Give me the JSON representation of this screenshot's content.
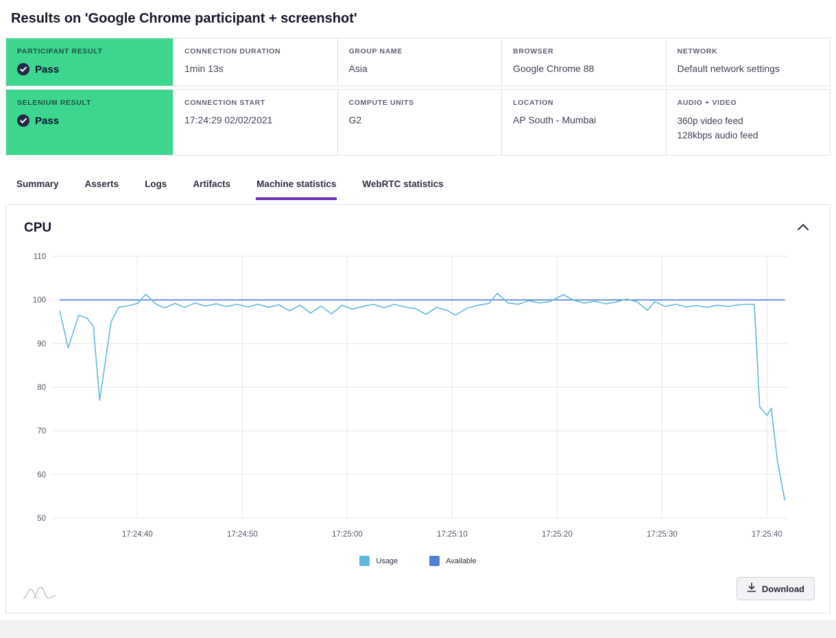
{
  "header": {
    "title": "Results on 'Google Chrome participant + screenshot'"
  },
  "colors": {
    "pass_green": "#3cd68f",
    "accent_purple": "#6b2fb5",
    "usage_blue": "#62b8dc",
    "available_blue": "#4f7fd3"
  },
  "cards": {
    "participant_result": {
      "label": "Participant result",
      "value": "Pass"
    },
    "connection_duration": {
      "label": "Connection duration",
      "value": "1min 13s"
    },
    "group_name": {
      "label": "Group name",
      "value": "Asia"
    },
    "browser": {
      "label": "Browser",
      "value": "Google Chrome 88"
    },
    "network": {
      "label": "Network",
      "value": "Default network settings"
    },
    "selenium_result": {
      "label": "Selenium result",
      "value": "Pass"
    },
    "connection_start": {
      "label": "Connection start",
      "value": "17:24:29 02/02/2021"
    },
    "compute_units": {
      "label": "Compute units",
      "value": "G2"
    },
    "location": {
      "label": "Location",
      "value": "AP South - Mumbai"
    },
    "audio_video": {
      "label": "Audio + Video",
      "line1": "360p video feed",
      "line2": "128kbps audio feed"
    }
  },
  "tabs": [
    {
      "label": "Summary",
      "active": false
    },
    {
      "label": "Asserts",
      "active": false
    },
    {
      "label": "Logs",
      "active": false
    },
    {
      "label": "Artifacts",
      "active": false
    },
    {
      "label": "Machine statistics",
      "active": true
    },
    {
      "label": "WebRTC statistics",
      "active": false
    }
  ],
  "panel": {
    "title": "CPU",
    "download_label": "Download"
  },
  "chart_data": {
    "type": "line",
    "title": "CPU",
    "grid": true,
    "legend_position": "bottom",
    "ylim": [
      50,
      110
    ],
    "y_ticks": [
      110,
      100,
      90,
      80,
      70,
      60,
      50
    ],
    "x_range": [
      2.2,
      72.0
    ],
    "x_ticks": [
      {
        "t": 10,
        "label": "17:24:40"
      },
      {
        "t": 20,
        "label": "17:24:50"
      },
      {
        "t": 30,
        "label": "17:25:00"
      },
      {
        "t": 40,
        "label": "17:25:10"
      },
      {
        "t": 50,
        "label": "17:25:20"
      },
      {
        "t": 60,
        "label": "17:25:30"
      },
      {
        "t": 70,
        "label": "17:25:40"
      }
    ],
    "series": [
      {
        "name": "Usage",
        "color": "#62b8dc",
        "points": [
          [
            2.6,
            97.5
          ],
          [
            3.4,
            89.0
          ],
          [
            4.4,
            96.5
          ],
          [
            5.2,
            95.8
          ],
          [
            5.8,
            94.0
          ],
          [
            6.4,
            77.0
          ],
          [
            7.5,
            95.0
          ],
          [
            8.2,
            98.3
          ],
          [
            9.0,
            98.6
          ],
          [
            10.0,
            99.2
          ],
          [
            10.8,
            101.3
          ],
          [
            11.8,
            99.0
          ],
          [
            12.6,
            98.2
          ],
          [
            13.6,
            99.2
          ],
          [
            14.5,
            98.3
          ],
          [
            15.5,
            99.3
          ],
          [
            16.5,
            98.6
          ],
          [
            17.5,
            99.1
          ],
          [
            18.5,
            98.5
          ],
          [
            19.5,
            99.0
          ],
          [
            20.5,
            98.4
          ],
          [
            21.5,
            99.0
          ],
          [
            22.5,
            98.3
          ],
          [
            23.5,
            98.9
          ],
          [
            24.5,
            97.5
          ],
          [
            25.5,
            98.8
          ],
          [
            26.5,
            97.0
          ],
          [
            27.5,
            98.6
          ],
          [
            28.5,
            96.8
          ],
          [
            29.5,
            98.8
          ],
          [
            30.5,
            97.9
          ],
          [
            31.5,
            98.5
          ],
          [
            32.5,
            99.0
          ],
          [
            33.5,
            98.2
          ],
          [
            34.5,
            99.0
          ],
          [
            35.5,
            98.4
          ],
          [
            36.5,
            98.0
          ],
          [
            37.5,
            96.7
          ],
          [
            38.5,
            98.3
          ],
          [
            39.5,
            97.6
          ],
          [
            40.3,
            96.5
          ],
          [
            41.5,
            98.2
          ],
          [
            42.5,
            98.8
          ],
          [
            43.5,
            99.2
          ],
          [
            44.3,
            101.5
          ],
          [
            45.3,
            99.3
          ],
          [
            46.3,
            99.0
          ],
          [
            47.3,
            99.8
          ],
          [
            48.3,
            99.3
          ],
          [
            49.3,
            99.6
          ],
          [
            50.6,
            101.2
          ],
          [
            51.6,
            99.9
          ],
          [
            52.6,
            99.3
          ],
          [
            53.6,
            99.7
          ],
          [
            54.6,
            99.1
          ],
          [
            55.6,
            99.5
          ],
          [
            56.6,
            100.2
          ],
          [
            57.6,
            99.6
          ],
          [
            58.6,
            97.6
          ],
          [
            59.3,
            99.6
          ],
          [
            60.3,
            98.5
          ],
          [
            61.3,
            99.0
          ],
          [
            62.3,
            98.4
          ],
          [
            63.3,
            98.7
          ],
          [
            64.3,
            98.3
          ],
          [
            65.3,
            98.8
          ],
          [
            66.3,
            98.5
          ],
          [
            67.3,
            98.9
          ],
          [
            68.8,
            99.0
          ],
          [
            69.3,
            75.5
          ],
          [
            70.0,
            73.5
          ],
          [
            70.4,
            75.2
          ],
          [
            71.0,
            63.0
          ],
          [
            71.7,
            54.0
          ]
        ]
      },
      {
        "name": "Available",
        "color": "#4f7fd3",
        "points": [
          [
            2.6,
            100
          ],
          [
            71.7,
            100
          ]
        ]
      }
    ]
  }
}
